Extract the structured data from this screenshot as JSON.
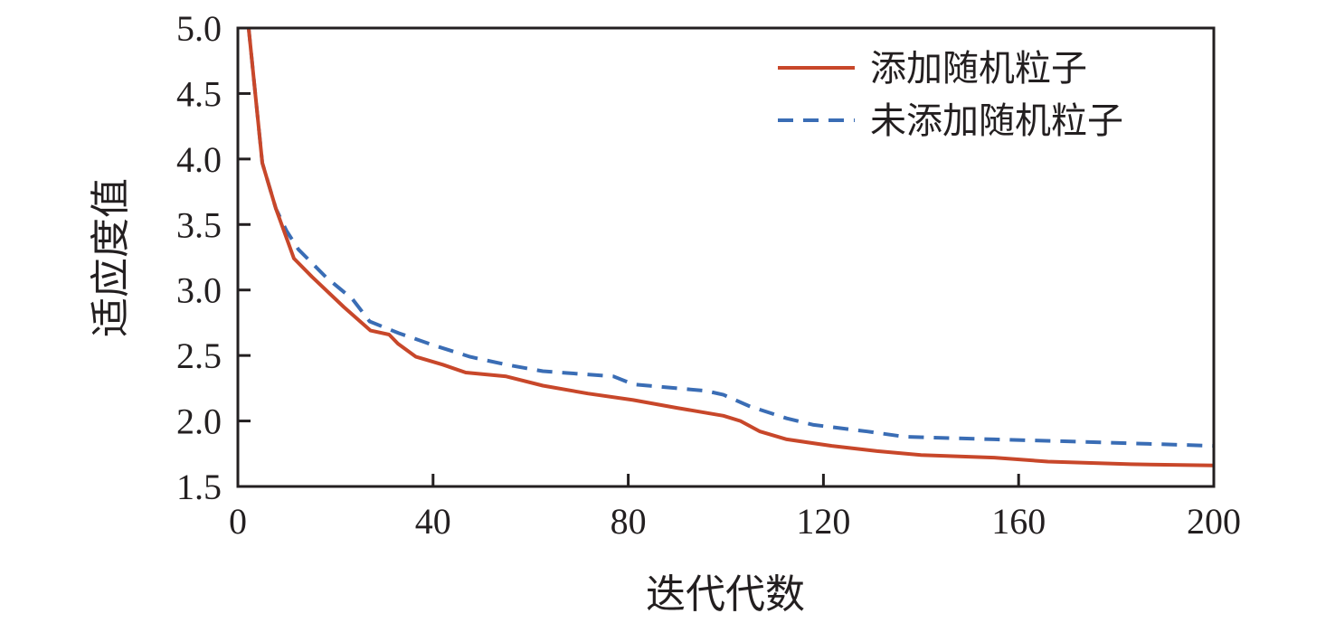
{
  "chart_data": {
    "type": "line",
    "title": "",
    "xlabel": "迭代代数",
    "ylabel": "适应度值",
    "xlim": [
      0,
      200
    ],
    "ylim": [
      1.5,
      5.0
    ],
    "xticks": [
      0,
      40,
      80,
      120,
      160,
      200
    ],
    "yticks": [
      1.5,
      2.0,
      2.5,
      3.0,
      3.5,
      4.0,
      4.5,
      5.0
    ],
    "xtick_labels": [
      "0",
      "40",
      "80",
      "120",
      "160",
      "200"
    ],
    "ytick_labels": [
      "1.5",
      "2.0",
      "2.5",
      "3.0",
      "3.5",
      "4.0",
      "4.5",
      "5.0"
    ],
    "grid": false,
    "legend_position": "top-right",
    "series": [
      {
        "name": "添加随机粒子",
        "color": "#c8472a",
        "style": "solid",
        "x": [
          2.2,
          5,
          7.8,
          11.5,
          15.2,
          21.7,
          27.2,
          31,
          32.8,
          36.5,
          42,
          46.7,
          55,
          62.5,
          71.7,
          81,
          90,
          99.5,
          103,
          107,
          112.5,
          121.7,
          131,
          140,
          155,
          166,
          183,
          200
        ],
        "y": [
          5.0,
          3.97,
          3.62,
          3.24,
          3.1,
          2.87,
          2.69,
          2.66,
          2.59,
          2.49,
          2.43,
          2.37,
          2.34,
          2.27,
          2.21,
          2.16,
          2.1,
          2.04,
          2.0,
          1.92,
          1.86,
          1.81,
          1.77,
          1.74,
          1.72,
          1.69,
          1.67,
          1.66
        ]
      },
      {
        "name": "未添加随机粒子",
        "color": "#3a6db5",
        "style": "dashed",
        "x": [
          2.2,
          5,
          7.8,
          10,
          12.4,
          18,
          23.5,
          27,
          33,
          40,
          47.6,
          55,
          62.5,
          77,
          81,
          96,
          99.5,
          105,
          112.5,
          118,
          129,
          136.6,
          155,
          173.7,
          200
        ],
        "y": [
          5.0,
          3.97,
          3.62,
          3.45,
          3.31,
          3.1,
          2.93,
          2.76,
          2.67,
          2.58,
          2.49,
          2.43,
          2.38,
          2.34,
          2.28,
          2.23,
          2.2,
          2.11,
          2.02,
          1.97,
          1.92,
          1.88,
          1.86,
          1.84,
          1.81
        ]
      }
    ]
  }
}
